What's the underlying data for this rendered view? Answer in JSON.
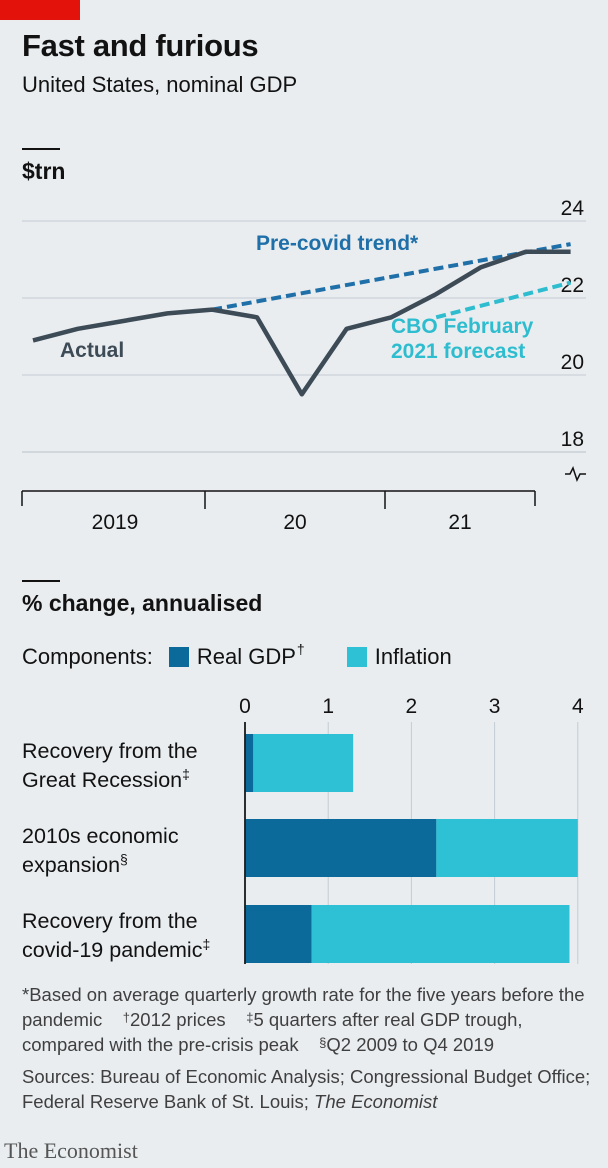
{
  "header": {
    "title": "Fast and furious",
    "subtitle": "United States, nominal GDP"
  },
  "colors": {
    "brand_red": "#e3120b",
    "actual": "#3d4b57",
    "pre_covid": "#1f6fa8",
    "cbo": "#2ebccf",
    "real_gdp": "#0c6a9b",
    "inflation": "#2ec1d5"
  },
  "chart_data": [
    {
      "type": "line",
      "unit_label": "$trn",
      "ylim": [
        18,
        24
      ],
      "y_ticks": [
        "18",
        "20",
        "22",
        "24"
      ],
      "y_axis_break": true,
      "grid": true,
      "x_groups": [
        "2019",
        "20",
        "21"
      ],
      "series": [
        {
          "name": "Actual",
          "x": [
            "2018Q4",
            "2019Q1",
            "2019Q2",
            "2019Q3",
            "2019Q4",
            "2020Q1",
            "2020Q2",
            "2020Q3",
            "2020Q4",
            "2021Q1",
            "2021Q2",
            "2021Q3",
            "2021Q4"
          ],
          "values": [
            20.9,
            21.2,
            21.4,
            21.6,
            21.7,
            21.5,
            19.5,
            21.2,
            21.5,
            22.1,
            22.8,
            23.2,
            23.2
          ]
        },
        {
          "name": "Pre-covid trend*",
          "x": [
            "2019Q4",
            "2021Q4"
          ],
          "values": [
            21.7,
            23.4
          ]
        },
        {
          "name": "CBO February 2021 forecast",
          "label_lines": [
            "CBO February",
            "2021 forecast"
          ],
          "x": [
            "2021Q1",
            "2021Q4"
          ],
          "values": [
            21.5,
            22.4
          ]
        }
      ]
    },
    {
      "type": "bar",
      "stacked": true,
      "orientation": "horizontal",
      "unit_label": "% change, annualised",
      "legend_title": "Components:",
      "xlim": [
        0,
        4
      ],
      "x_ticks": [
        "0",
        "1",
        "2",
        "3",
        "4"
      ],
      "categories": [
        {
          "lines": [
            "Recovery from the",
            "Great Recession"
          ],
          "mark": "‡"
        },
        {
          "lines": [
            "2010s economic",
            "expansion"
          ],
          "mark": "§"
        },
        {
          "lines": [
            "Recovery from the",
            "covid-19 pandemic"
          ],
          "mark": "‡"
        }
      ],
      "series": [
        {
          "name": "Real GDP",
          "mark": "†",
          "values": [
            0.1,
            2.3,
            0.8
          ]
        },
        {
          "name": "Inflation",
          "values": [
            1.2,
            1.7,
            3.1
          ]
        }
      ]
    }
  ],
  "footnote": {
    "star": "*Based on average quarterly growth rate for the five years before the pandemic",
    "dagger_mark": "†",
    "dagger": "2012 prices",
    "ddagger_mark": "‡",
    "ddagger": "5 quarters after real GDP trough, compared with the pre-crisis peak",
    "section_mark": "§",
    "section": "Q2 2009 to Q4 2019",
    "sources_prefix": "Sources: Bureau of Economic Analysis; Congressional Budget Office; Federal Reserve Bank of St. Louis; ",
    "sources_italic": "The Economist"
  },
  "brand": "The Economist"
}
